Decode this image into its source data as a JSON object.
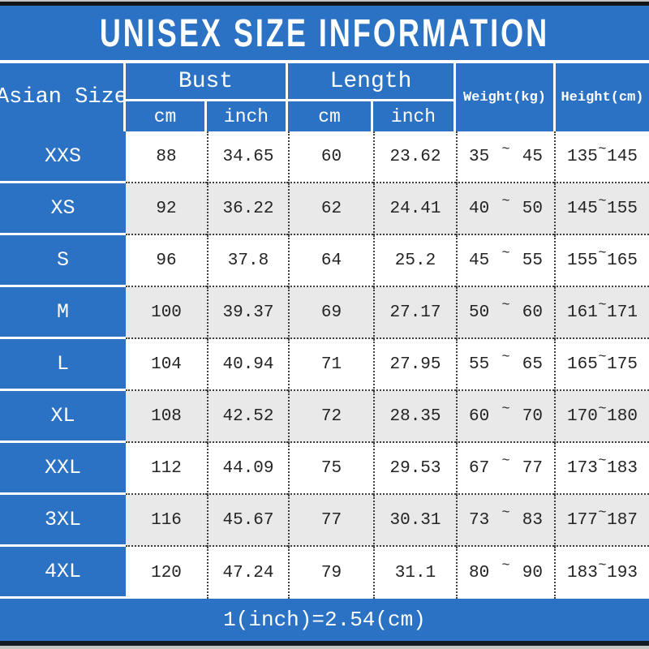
{
  "title": "UNISEX SIZE INFORMATION",
  "footer_note": "1(inch)=2.54(cm)",
  "symbols": {
    "tilde": "~"
  },
  "colors": {
    "primary_blue": "#2b72c4",
    "row_alt_gray": "#e9e9e9",
    "bar_black": "#151515",
    "bar_dark_navy": "#141b26",
    "bottom_line_gray": "#c4c4c4"
  },
  "header": {
    "size_col_label": "Asian Size",
    "bust_label": "Bust",
    "length_label": "Length",
    "unit_bust_cm": "cm",
    "unit_bust_inch": "inch",
    "unit_length_cm": "cm",
    "unit_length_inch": "inch",
    "weight_label": "Weight(kg)",
    "height_label": "Height(cm)"
  },
  "chart_data": {
    "type": "table",
    "title": "UNISEX SIZE INFORMATION",
    "columns": [
      "Asian Size",
      "Bust (cm)",
      "Bust (inch)",
      "Length (cm)",
      "Length (inch)",
      "Weight (kg) min",
      "Weight (kg) max",
      "Height (cm) min",
      "Height (cm) max"
    ],
    "note": "1(inch)=2.54(cm)",
    "rows": [
      {
        "size": "XXS",
        "bust_cm": "88",
        "bust_in": "34.65",
        "length_cm": "60",
        "length_in": "23.62",
        "weight_min": "35",
        "weight_max": "45",
        "height_min": "135",
        "height_max": "145"
      },
      {
        "size": "XS",
        "bust_cm": "92",
        "bust_in": "36.22",
        "length_cm": "62",
        "length_in": "24.41",
        "weight_min": "40",
        "weight_max": "50",
        "height_min": "145",
        "height_max": "155"
      },
      {
        "size": "S",
        "bust_cm": "96",
        "bust_in": "37.8",
        "length_cm": "64",
        "length_in": "25.2",
        "weight_min": "45",
        "weight_max": "55",
        "height_min": "155",
        "height_max": "165"
      },
      {
        "size": "M",
        "bust_cm": "100",
        "bust_in": "39.37",
        "length_cm": "69",
        "length_in": "27.17",
        "weight_min": "50",
        "weight_max": "60",
        "height_min": "161",
        "height_max": "171"
      },
      {
        "size": "L",
        "bust_cm": "104",
        "bust_in": "40.94",
        "length_cm": "71",
        "length_in": "27.95",
        "weight_min": "55",
        "weight_max": "65",
        "height_min": "165",
        "height_max": "175"
      },
      {
        "size": "XL",
        "bust_cm": "108",
        "bust_in": "42.52",
        "length_cm": "72",
        "length_in": "28.35",
        "weight_min": "60",
        "weight_max": "70",
        "height_min": "170",
        "height_max": "180"
      },
      {
        "size": "XXL",
        "bust_cm": "112",
        "bust_in": "44.09",
        "length_cm": "75",
        "length_in": "29.53",
        "weight_min": "67",
        "weight_max": "77",
        "height_min": "173",
        "height_max": "183"
      },
      {
        "size": "3XL",
        "bust_cm": "116",
        "bust_in": "45.67",
        "length_cm": "77",
        "length_in": "30.31",
        "weight_min": "73",
        "weight_max": "83",
        "height_min": "177",
        "height_max": "187"
      },
      {
        "size": "4XL",
        "bust_cm": "120",
        "bust_in": "47.24",
        "length_cm": "79",
        "length_in": "31.1",
        "weight_min": "80",
        "weight_max": "90",
        "height_min": "183",
        "height_max": "193"
      }
    ]
  }
}
